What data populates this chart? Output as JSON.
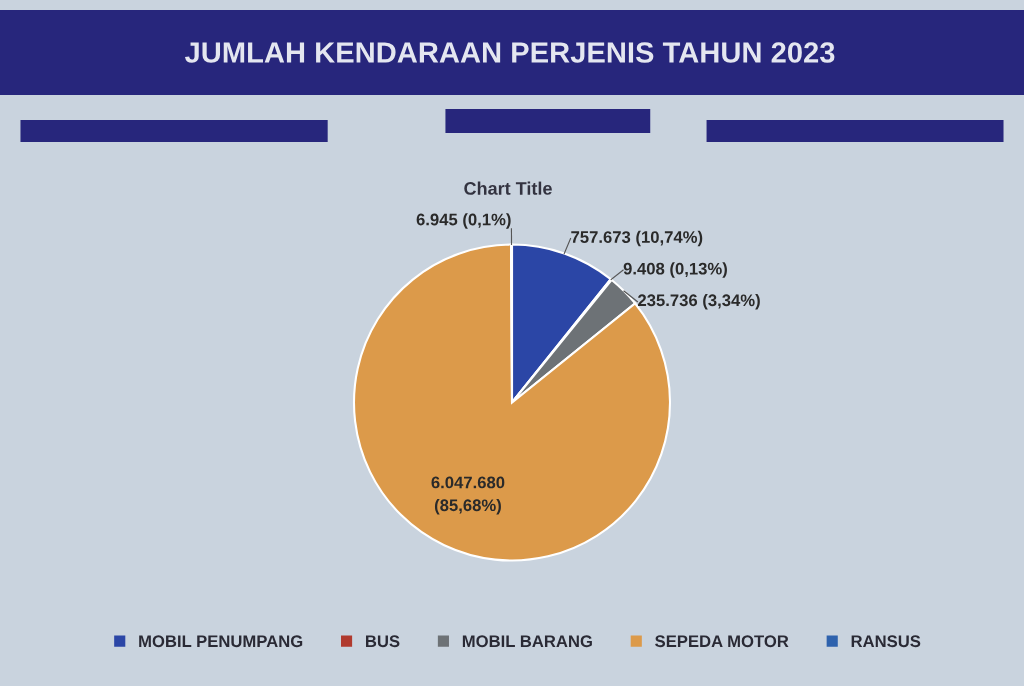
{
  "chart_data": {
    "type": "pie",
    "title": "JUMLAH KENDARAAN PERJENIS TAHUN 2023",
    "subtitle": "Chart Title",
    "categories": [
      "MOBIL PENUMPANG",
      "BUS",
      "MOBIL BARANG",
      "SEPEDA MOTOR",
      "RANSUS"
    ],
    "values": [
      757673,
      9408,
      235736,
      6047680,
      6945
    ],
    "colors": [
      "#2b46a6",
      "#b03a2e",
      "#6d7276",
      "#dc9a4a",
      "#2e62ad"
    ],
    "value_labels": [
      "757.673 (10,74%)",
      "9.408 (0,13%)",
      "235.736 (3,34%)",
      "6.047.680 (85,68%)",
      "6.945 (0,1%)"
    ],
    "legend": "bottom"
  }
}
